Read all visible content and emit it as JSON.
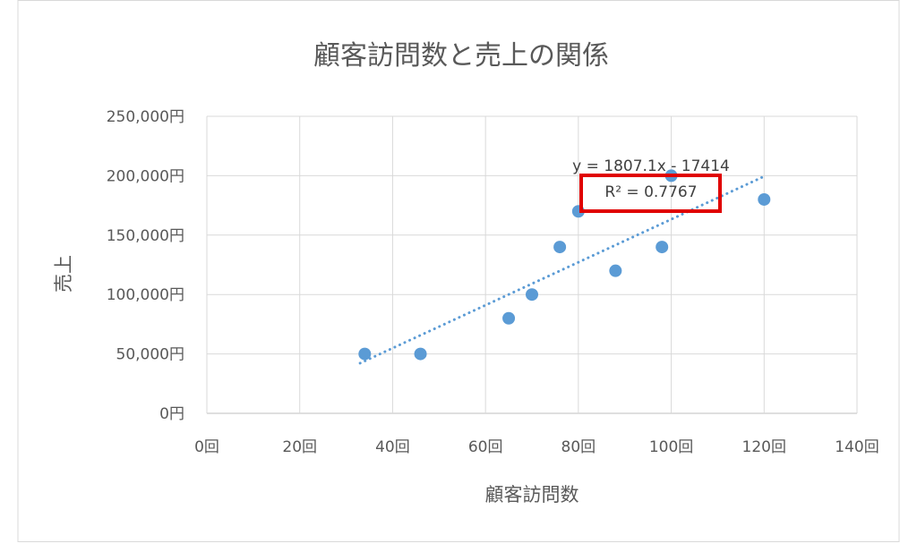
{
  "chart_data": {
    "type": "scatter",
    "title": "顧客訪問数と売上の関係",
    "xlabel": "顧客訪問数",
    "ylabel": "売上",
    "xlim": [
      0,
      140
    ],
    "ylim": [
      0,
      250000
    ],
    "x_ticks": [
      0,
      20,
      40,
      60,
      80,
      100,
      120,
      140
    ],
    "y_ticks": [
      0,
      50000,
      100000,
      150000,
      200000,
      250000
    ],
    "x_tick_labels": [
      "0回",
      "20回",
      "40回",
      "60回",
      "80回",
      "100回",
      "120回",
      "140回"
    ],
    "y_tick_labels": [
      "0円",
      "50,000円",
      "100,000円",
      "150,000円",
      "200,000円",
      "250,000円"
    ],
    "grid": true,
    "marker_color": "#5B9BD5",
    "trendline_color": "#5B9BD5",
    "highlight_color": "#E00000",
    "points": [
      {
        "x": 34,
        "y": 50000
      },
      {
        "x": 46,
        "y": 50000
      },
      {
        "x": 65,
        "y": 80000
      },
      {
        "x": 70,
        "y": 100000
      },
      {
        "x": 76,
        "y": 140000
      },
      {
        "x": 80,
        "y": 170000
      },
      {
        "x": 88,
        "y": 120000
      },
      {
        "x": 98,
        "y": 140000
      },
      {
        "x": 100,
        "y": 200000
      },
      {
        "x": 120,
        "y": 180000
      }
    ],
    "trendline": {
      "type": "linear",
      "dash": "dotted",
      "slope": 1807.1,
      "intercept": -17414,
      "x_range": [
        33,
        120
      ],
      "equation_label": "y = 1807.1x - 17414",
      "r2_label": "R² = 0.7767",
      "r2_highlighted": true
    }
  }
}
